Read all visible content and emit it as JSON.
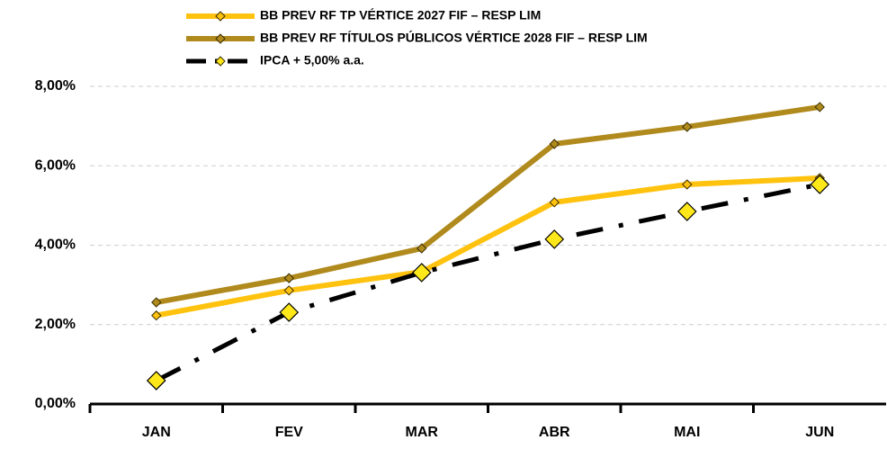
{
  "chart_data": {
    "type": "line",
    "categories": [
      "JAN",
      "FEV",
      "MAR",
      "ABR",
      "MAI",
      "JUN"
    ],
    "series": [
      {
        "name": "BB PREV RF TP VÉRTICE 2027 FIF – RESP LIM",
        "color": "#FFC20E",
        "marker_color": "#FFC20E",
        "values": [
          2.23,
          2.86,
          3.33,
          5.08,
          5.53,
          5.69
        ]
      },
      {
        "name": "BB PREV RF TÍTULOS PÚBLICOS VÉRTICE 2028 FIF – RESP LIM",
        "color": "#B08A1C",
        "marker_color": "#B08A1C",
        "values": [
          2.56,
          3.17,
          3.92,
          6.55,
          6.98,
          7.48
        ]
      },
      {
        "name": "IPCA + 5,00% a.a.",
        "color": "#000000",
        "marker_color": "#FFE81A",
        "dashed": true,
        "values": [
          0.59,
          2.31,
          3.31,
          4.15,
          4.85,
          5.53
        ]
      }
    ],
    "ylim": [
      0,
      8
    ],
    "yticks": [
      {
        "value": 0,
        "label": "0,00%"
      },
      {
        "value": 2,
        "label": "2,00%"
      },
      {
        "value": 4,
        "label": "4,00%"
      },
      {
        "value": 6,
        "label": "6,00%"
      },
      {
        "value": 8,
        "label": "8,00%"
      }
    ],
    "grid": true,
    "legend": "top"
  }
}
